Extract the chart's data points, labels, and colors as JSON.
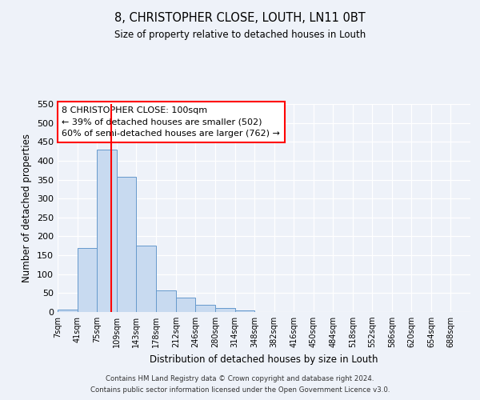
{
  "title": "8, CHRISTOPHER CLOSE, LOUTH, LN11 0BT",
  "subtitle": "Size of property relative to detached houses in Louth",
  "xlabel": "Distribution of detached houses by size in Louth",
  "ylabel": "Number of detached properties",
  "bin_edges": [
    7,
    41,
    75,
    109,
    143,
    178,
    212,
    246,
    280,
    314,
    348,
    382,
    416,
    450,
    484,
    518,
    552,
    586,
    620,
    654,
    688
  ],
  "bar_heights": [
    7,
    170,
    430,
    357,
    175,
    57,
    39,
    20,
    10,
    5,
    1,
    1,
    1,
    1,
    1,
    1,
    1,
    1,
    1,
    1
  ],
  "bar_color": "#c8daf0",
  "bar_edge_color": "#6699cc",
  "red_line_x": 100,
  "ylim": [
    0,
    550
  ],
  "yticks": [
    0,
    50,
    100,
    150,
    200,
    250,
    300,
    350,
    400,
    450,
    500,
    550
  ],
  "annotation_title": "8 CHRISTOPHER CLOSE: 100sqm",
  "annotation_line1": "← 39% of detached houses are smaller (502)",
  "annotation_line2": "60% of semi-detached houses are larger (762) →",
  "background_color": "#eef2f9",
  "footer1": "Contains HM Land Registry data © Crown copyright and database right 2024.",
  "footer2": "Contains public sector information licensed under the Open Government Licence v3.0."
}
